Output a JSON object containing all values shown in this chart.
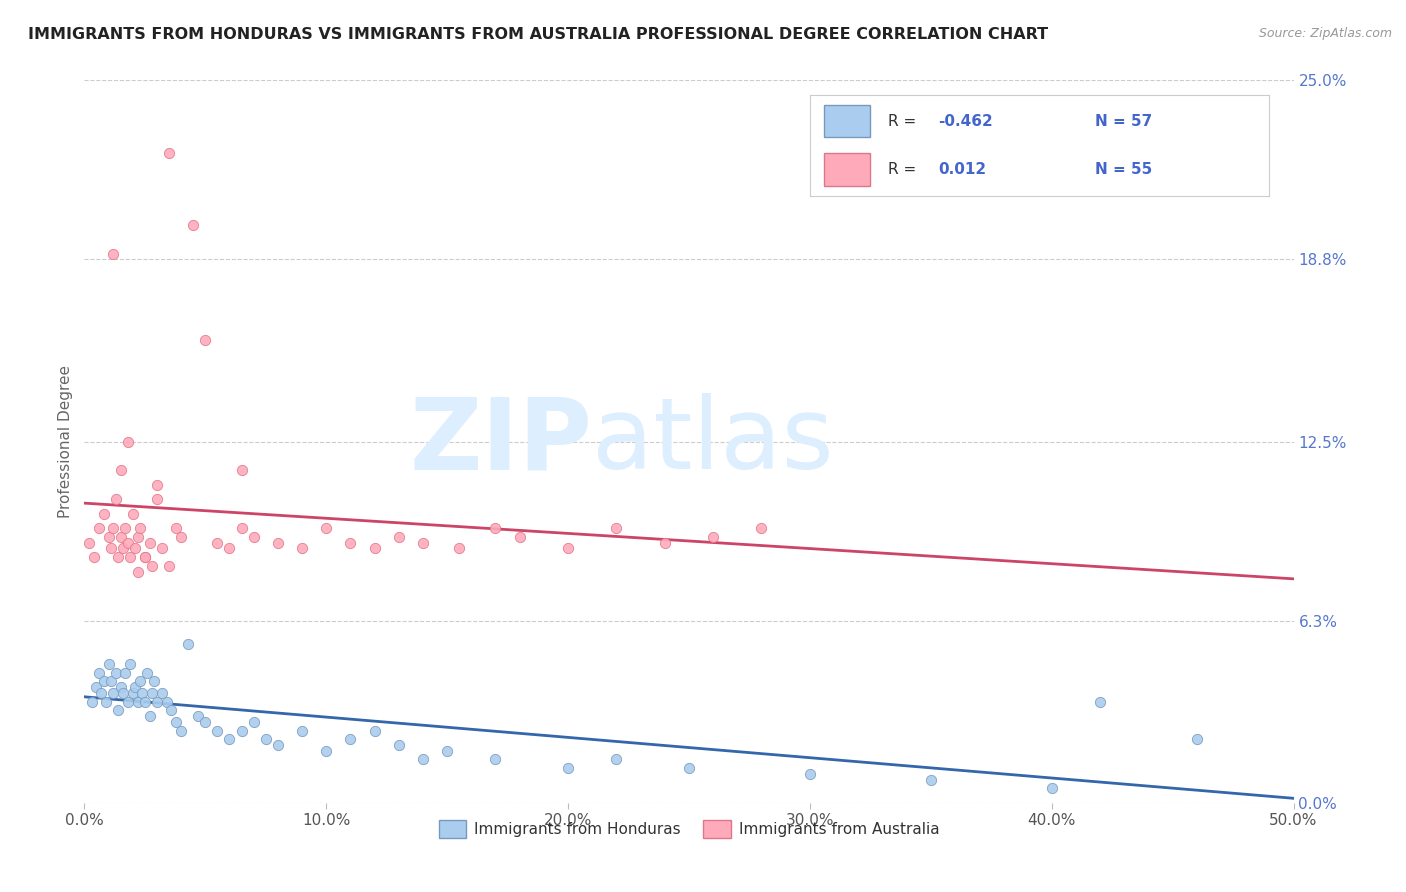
{
  "title": "IMMIGRANTS FROM HONDURAS VS IMMIGRANTS FROM AUSTRALIA PROFESSIONAL DEGREE CORRELATION CHART",
  "source": "Source: ZipAtlas.com",
  "ylabel": "Professional Degree",
  "xlim": [
    0.0,
    50.0
  ],
  "ylim": [
    0.0,
    25.0
  ],
  "xticks": [
    0.0,
    10.0,
    20.0,
    30.0,
    40.0,
    50.0
  ],
  "yticks": [
    0.0,
    6.3,
    12.5,
    18.8,
    25.0
  ],
  "xtick_labels": [
    "0.0%",
    "10.0%",
    "20.0%",
    "30.0%",
    "40.0%",
    "50.0%"
  ],
  "ytick_labels": [
    "0.0%",
    "6.3%",
    "12.5%",
    "18.8%",
    "25.0%"
  ],
  "series": [
    {
      "name": "Immigrants from Honduras",
      "color": "#aaccee",
      "edge_color": "#7799bb",
      "R": -0.462,
      "N": 57,
      "trend_color": "#3366aa",
      "x": [
        0.3,
        0.5,
        0.6,
        0.7,
        0.8,
        0.9,
        1.0,
        1.1,
        1.2,
        1.3,
        1.4,
        1.5,
        1.6,
        1.7,
        1.8,
        1.9,
        2.0,
        2.1,
        2.2,
        2.3,
        2.4,
        2.5,
        2.6,
        2.7,
        2.8,
        2.9,
        3.0,
        3.2,
        3.4,
        3.6,
        3.8,
        4.0,
        4.3,
        4.7,
        5.0,
        5.5,
        6.0,
        6.5,
        7.0,
        7.5,
        8.0,
        9.0,
        10.0,
        11.0,
        12.0,
        13.0,
        14.0,
        15.0,
        17.0,
        20.0,
        22.0,
        25.0,
        30.0,
        35.0,
        40.0,
        42.0,
        46.0
      ],
      "y": [
        3.5,
        4.0,
        4.5,
        3.8,
        4.2,
        3.5,
        4.8,
        4.2,
        3.8,
        4.5,
        3.2,
        4.0,
        3.8,
        4.5,
        3.5,
        4.8,
        3.8,
        4.0,
        3.5,
        4.2,
        3.8,
        3.5,
        4.5,
        3.0,
        3.8,
        4.2,
        3.5,
        3.8,
        3.5,
        3.2,
        2.8,
        2.5,
        5.5,
        3.0,
        2.8,
        2.5,
        2.2,
        2.5,
        2.8,
        2.2,
        2.0,
        2.5,
        1.8,
        2.2,
        2.5,
        2.0,
        1.5,
        1.8,
        1.5,
        1.2,
        1.5,
        1.2,
        1.0,
        0.8,
        0.5,
        3.5,
        2.2
      ]
    },
    {
      "name": "Immigrants from Australia",
      "color": "#ffaabb",
      "edge_color": "#dd7788",
      "R": 0.012,
      "N": 55,
      "trend_color": "#cc4466",
      "x": [
        0.2,
        0.4,
        0.6,
        0.8,
        1.0,
        1.1,
        1.2,
        1.3,
        1.4,
        1.5,
        1.6,
        1.7,
        1.8,
        1.9,
        2.0,
        2.1,
        2.2,
        2.3,
        2.5,
        2.7,
        3.0,
        3.2,
        3.5,
        3.8,
        4.0,
        4.5,
        5.0,
        5.5,
        6.0,
        6.5,
        7.0,
        8.0,
        9.0,
        10.0,
        11.0,
        12.0,
        13.0,
        14.0,
        15.5,
        17.0,
        18.0,
        20.0,
        22.0,
        24.0,
        26.0,
        28.0,
        1.5,
        2.8,
        1.8,
        3.0,
        2.2,
        2.5,
        3.5,
        1.2,
        6.5
      ],
      "y": [
        9.0,
        8.5,
        9.5,
        10.0,
        9.2,
        8.8,
        9.5,
        10.5,
        8.5,
        9.2,
        8.8,
        9.5,
        9.0,
        8.5,
        10.0,
        8.8,
        9.2,
        9.5,
        8.5,
        9.0,
        10.5,
        8.8,
        22.5,
        9.5,
        9.2,
        20.0,
        16.0,
        9.0,
        8.8,
        9.5,
        9.2,
        9.0,
        8.8,
        9.5,
        9.0,
        8.8,
        9.2,
        9.0,
        8.8,
        9.5,
        9.2,
        8.8,
        9.5,
        9.0,
        9.2,
        9.5,
        11.5,
        8.2,
        12.5,
        11.0,
        8.0,
        8.5,
        8.2,
        19.0,
        11.5
      ]
    }
  ],
  "watermark_zip": "ZIP",
  "watermark_atlas": "atlas",
  "watermark_color": "#ddeeff",
  "background_color": "#ffffff",
  "grid_color": "#cccccc",
  "title_color": "#222222",
  "axis_label_color": "#666666",
  "tick_color_right": "#5577cc",
  "tick_color_bottom": "#555555",
  "legend_R_label": "R = ",
  "legend_N_label": "N = ",
  "legend_blue_R": "-0.462",
  "legend_blue_N": "57",
  "legend_pink_R": "0.012",
  "legend_pink_N": "55",
  "legend_value_color": "#4466cc",
  "legend_text_color": "#333333"
}
